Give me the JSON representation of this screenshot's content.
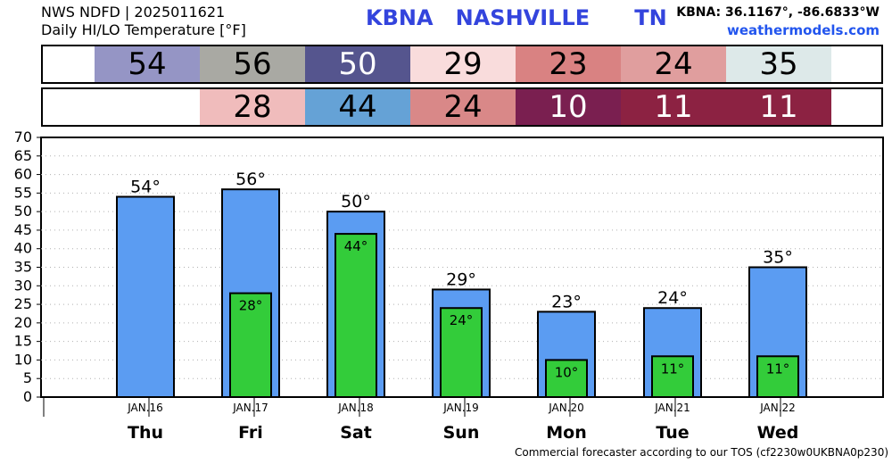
{
  "header": {
    "line1": "NWS NDFD | 2025011621",
    "line2": "Daily HI/LO Temperature [°F]",
    "station": "KBNA   NASHVILLE      TN",
    "coords": "KBNA: 36.1167°, -86.6833°W",
    "site": "weathermodels.com"
  },
  "strips": {
    "hi": [
      {
        "text": "54",
        "bg": "#9595c5",
        "fg": "#000000"
      },
      {
        "text": "56",
        "bg": "#a9a9a3",
        "fg": "#000000"
      },
      {
        "text": "50",
        "bg": "#55558e",
        "fg": "#ffffff"
      },
      {
        "text": "29",
        "bg": "#f9dcdc",
        "fg": "#000000"
      },
      {
        "text": "23",
        "bg": "#d98282",
        "fg": "#000000"
      },
      {
        "text": "24",
        "bg": "#e09e9e",
        "fg": "#000000"
      },
      {
        "text": "35",
        "bg": "#dde9e9",
        "fg": "#000000"
      }
    ],
    "lo": [
      {
        "text": "",
        "bg": "#ffffff",
        "fg": "#000000"
      },
      {
        "text": "28",
        "bg": "#f0bcbc",
        "fg": "#000000"
      },
      {
        "text": "44",
        "bg": "#65a2d6",
        "fg": "#000000"
      },
      {
        "text": "24",
        "bg": "#d98888",
        "fg": "#000000"
      },
      {
        "text": "10",
        "bg": "#7a1f50",
        "fg": "#ffffff"
      },
      {
        "text": "11",
        "bg": "#8c2242",
        "fg": "#ffffff"
      },
      {
        "text": "11",
        "bg": "#8c2242",
        "fg": "#ffffff"
      }
    ]
  },
  "chart_data": {
    "type": "bar",
    "categories": [
      "JAN.16",
      "JAN.17",
      "JAN.18",
      "JAN.19",
      "JAN.20",
      "JAN.21",
      "JAN.22"
    ],
    "day_labels": [
      "Thu",
      "Fri",
      "Sat",
      "Sun",
      "Mon",
      "Tue",
      "Wed"
    ],
    "series": [
      {
        "values": [
          54,
          56,
          50,
          29,
          23,
          24,
          35
        ],
        "color": "#5b9cf2",
        "labels": [
          "54°",
          "56°",
          "50°",
          "29°",
          "23°",
          "24°",
          "35°"
        ]
      },
      {
        "values": [
          null,
          28,
          44,
          24,
          10,
          11,
          11
        ],
        "color": "#33cc3a",
        "labels": [
          "",
          "28°",
          "44°",
          "24°",
          "10°",
          "11°",
          "11°"
        ]
      }
    ],
    "ylim": [
      0,
      70
    ],
    "yticks": [
      0,
      5,
      10,
      15,
      20,
      25,
      30,
      35,
      40,
      45,
      50,
      55,
      60,
      65,
      70
    ],
    "grid": true
  },
  "footer": "Commercial forecaster according to our TOS (cf2230w0UKBNA0p230)"
}
